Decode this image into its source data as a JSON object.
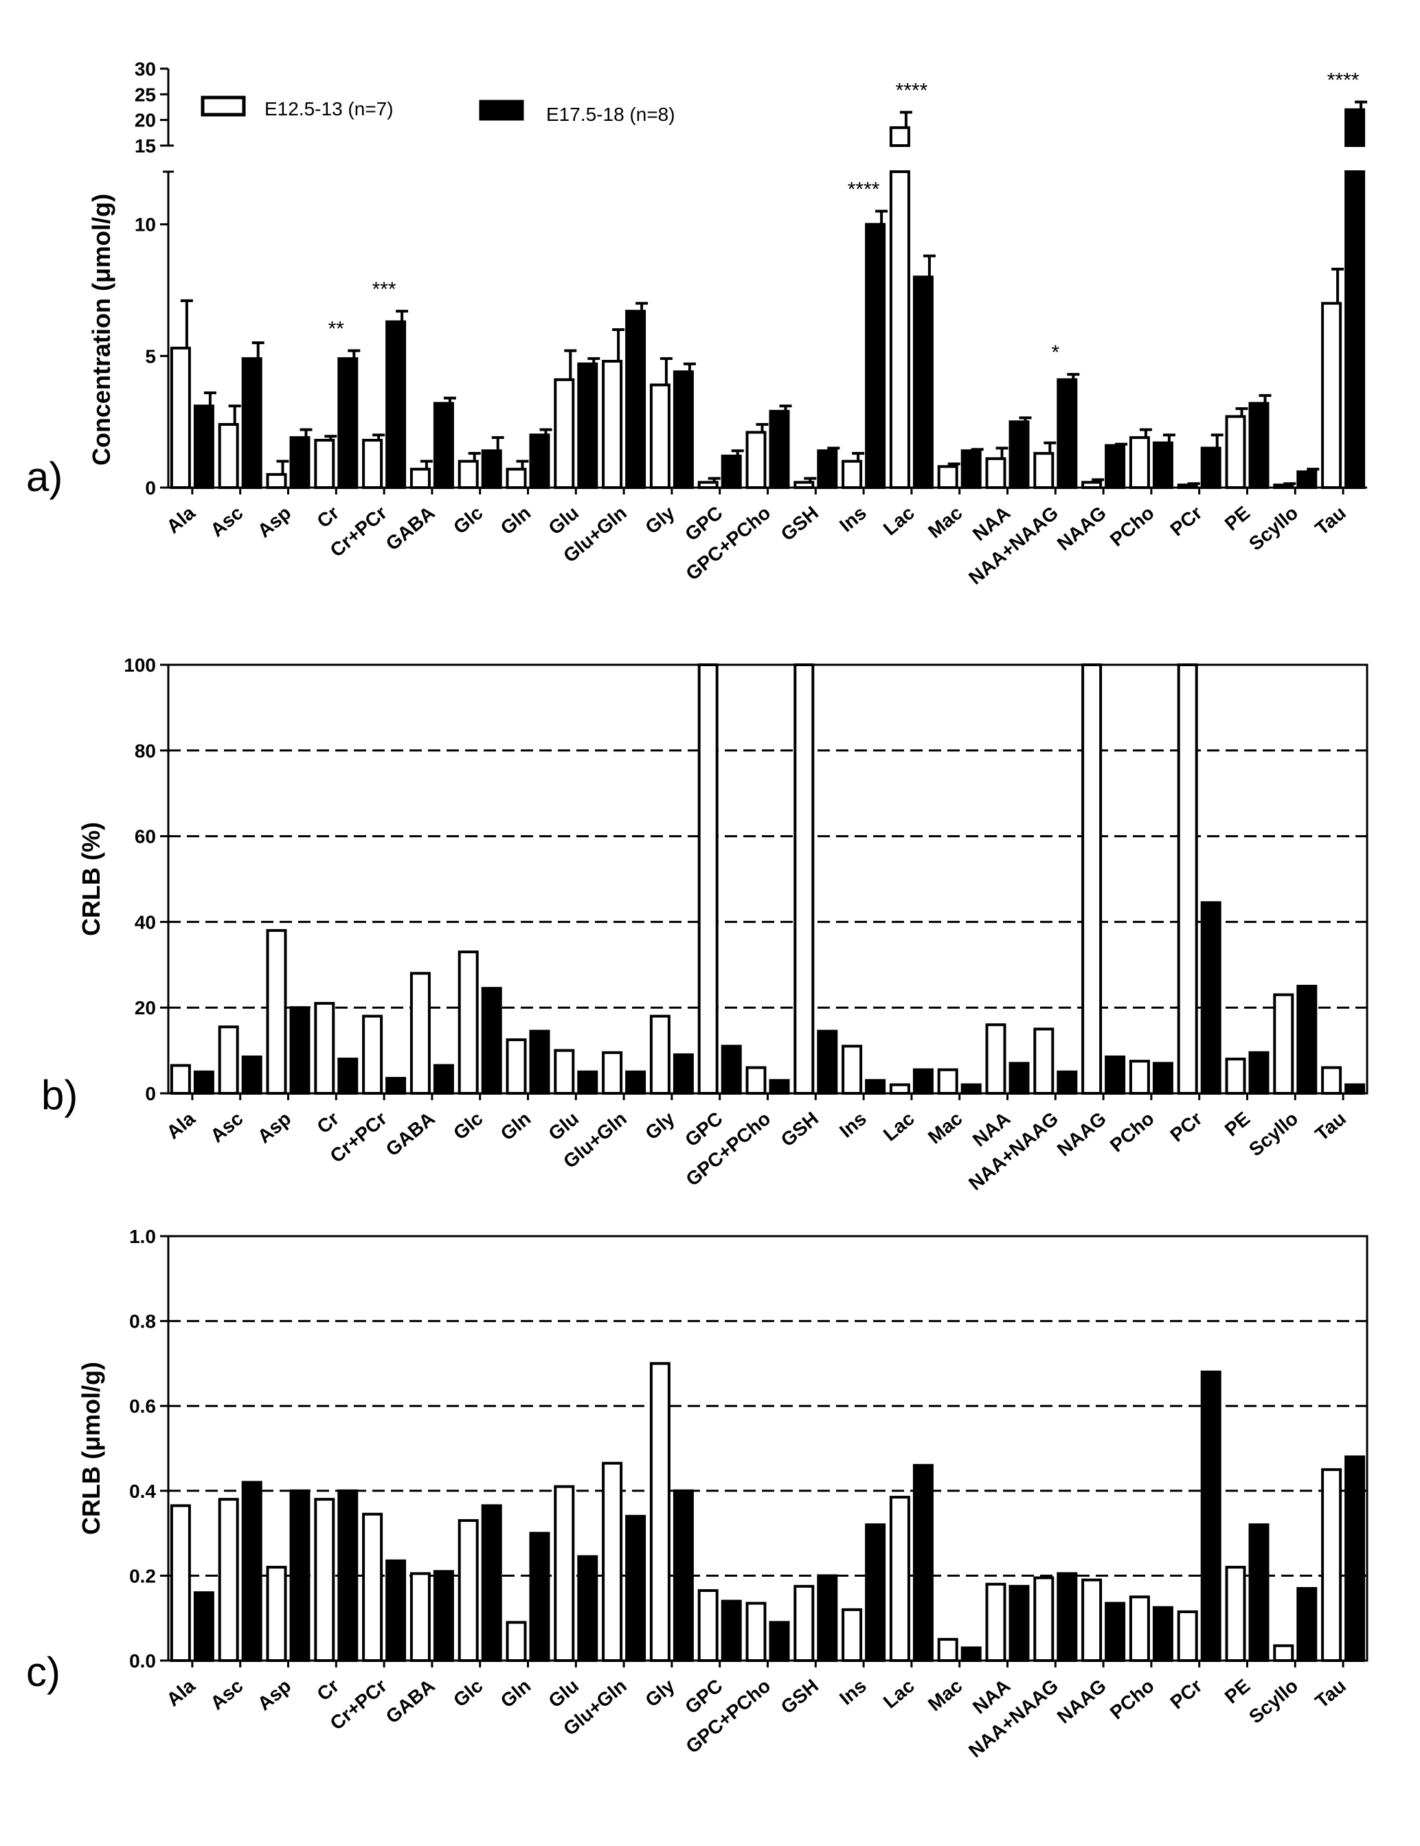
{
  "colors": {
    "group1": "#ffffff",
    "group2": "#000000",
    "stroke": "#000000"
  },
  "legend": {
    "group1": "E12.5-13 (n=7)",
    "group2": "E17.5-18  (n=8)"
  },
  "chart_data": [
    {
      "panel": "a)",
      "type": "bar",
      "ylabel": "Concentration (μmol/g)",
      "y_break": {
        "lower_range": [
          0,
          12
        ],
        "upper_range": [
          15,
          30
        ]
      },
      "yticks_lower": [
        "0",
        "5",
        "10"
      ],
      "yticks_upper": [
        "15",
        "20",
        "25",
        "30"
      ],
      "categories": [
        "Ala",
        "Asc",
        "Asp",
        "Cr",
        "Cr+PCr",
        "GABA",
        "Glc",
        "Gln",
        "Glu",
        "Glu+Gln",
        "Gly",
        "GPC",
        "GPC+PCho",
        "GSH",
        "Ins",
        "Lac",
        "Mac",
        "NAA",
        "NAA+NAAG",
        "NAAG",
        "PCho",
        "PCr",
        "PE",
        "Scyllo",
        "Tau"
      ],
      "series": [
        {
          "name": "E12.5-13 (n=7)",
          "values": [
            5.3,
            2.4,
            0.5,
            1.8,
            1.8,
            0.7,
            1.0,
            0.7,
            4.1,
            4.8,
            3.9,
            0.2,
            2.1,
            0.2,
            1.0,
            18.5,
            0.8,
            1.1,
            1.3,
            0.2,
            1.9,
            0.1,
            2.7,
            0.1,
            7.0
          ],
          "errors": [
            1.8,
            0.7,
            0.5,
            0.15,
            0.2,
            0.3,
            0.3,
            0.3,
            1.1,
            1.2,
            1.0,
            0.15,
            0.3,
            0.15,
            0.3,
            3.0,
            0.1,
            0.4,
            0.4,
            0.1,
            0.3,
            0.05,
            0.3,
            0.05,
            1.3
          ]
        },
        {
          "name": "E17.5-18  (n=8)",
          "values": [
            3.1,
            4.9,
            1.9,
            4.9,
            6.3,
            3.2,
            1.4,
            2.0,
            4.7,
            6.7,
            4.4,
            1.2,
            2.9,
            1.4,
            10.0,
            8.0,
            1.4,
            2.5,
            4.1,
            1.6,
            1.7,
            1.5,
            3.2,
            0.6,
            22.0
          ],
          "errors": [
            0.5,
            0.6,
            0.3,
            0.3,
            0.4,
            0.2,
            0.5,
            0.2,
            0.2,
            0.3,
            0.3,
            0.2,
            0.2,
            0.1,
            0.5,
            0.8,
            0.05,
            0.15,
            0.2,
            0.05,
            0.3,
            0.5,
            0.3,
            0.1,
            1.5
          ]
        }
      ],
      "annotations": [
        {
          "category": "Cr",
          "text": "**"
        },
        {
          "category": "Cr+PCr",
          "text": "***"
        },
        {
          "category": "Ins",
          "text": "****"
        },
        {
          "category": "Lac",
          "text": "****"
        },
        {
          "category": "NAA+NAAG",
          "text": "*"
        },
        {
          "category": "Tau",
          "text": "****"
        }
      ],
      "legend_position": "top-left"
    },
    {
      "panel": "b)",
      "type": "bar",
      "ylabel": "CRLB (%)",
      "ylim": [
        0,
        100
      ],
      "yticks": [
        "0",
        "20",
        "40",
        "60",
        "80",
        "100"
      ],
      "dashed_gridlines": [
        20,
        40,
        60,
        80
      ],
      "categories": [
        "Ala",
        "Asc",
        "Asp",
        "Cr",
        "Cr+PCr",
        "GABA",
        "Glc",
        "Gln",
        "Glu",
        "Glu+Gln",
        "Gly",
        "GPC",
        "GPC+PCho",
        "GSH",
        "Ins",
        "Lac",
        "Mac",
        "NAA",
        "NAA+NAAG",
        "NAAG",
        "PCho",
        "PCr",
        "PE",
        "Scyllo",
        "Tau"
      ],
      "series": [
        {
          "name": "E12.5-13 (n=7)",
          "values": [
            6.5,
            15.5,
            38,
            21,
            18,
            28,
            33,
            12.5,
            10,
            9.5,
            18,
            100,
            6,
            100,
            11,
            2,
            5.5,
            16,
            15,
            100,
            7.5,
            100,
            8,
            23,
            6
          ]
        },
        {
          "name": "E17.5-18  (n=8)",
          "values": [
            5,
            8.5,
            20,
            8,
            3.5,
            6.5,
            24.5,
            14.5,
            5,
            5,
            9,
            11,
            3,
            14.5,
            3,
            5.5,
            2,
            7,
            5,
            8.5,
            7,
            44.5,
            9.5,
            25,
            2
          ]
        }
      ]
    },
    {
      "panel": "c)",
      "type": "bar",
      "ylabel": "CRLB (μmol/g)",
      "ylim": [
        0,
        1.0
      ],
      "yticks": [
        "0.0",
        "0.2",
        "0.4",
        "0.6",
        "0.8",
        "1.0"
      ],
      "dashed_gridlines": [
        0.2,
        0.4,
        0.6,
        0.8
      ],
      "categories": [
        "Ala",
        "Asc",
        "Asp",
        "Cr",
        "Cr+PCr",
        "GABA",
        "Glc",
        "Gln",
        "Glu",
        "Glu+Gln",
        "Gly",
        "GPC",
        "GPC+PCho",
        "GSH",
        "Ins",
        "Lac",
        "Mac",
        "NAA",
        "NAA+NAAG",
        "NAAG",
        "PCho",
        "PCr",
        "PE",
        "Scyllo",
        "Tau"
      ],
      "series": [
        {
          "name": "E12.5-13 (n=7)",
          "values": [
            0.365,
            0.38,
            0.22,
            0.38,
            0.345,
            0.205,
            0.33,
            0.09,
            0.41,
            0.465,
            0.7,
            0.165,
            0.135,
            0.175,
            0.12,
            0.385,
            0.05,
            0.18,
            0.195,
            0.19,
            0.15,
            0.115,
            0.22,
            0.035,
            0.45
          ]
        },
        {
          "name": "E17.5-18  (n=8)",
          "values": [
            0.16,
            0.42,
            0.4,
            0.4,
            0.235,
            0.21,
            0.365,
            0.3,
            0.245,
            0.34,
            0.4,
            0.14,
            0.09,
            0.2,
            0.32,
            0.46,
            0.03,
            0.175,
            0.205,
            0.135,
            0.125,
            0.68,
            0.32,
            0.17,
            0.48
          ]
        }
      ]
    }
  ]
}
